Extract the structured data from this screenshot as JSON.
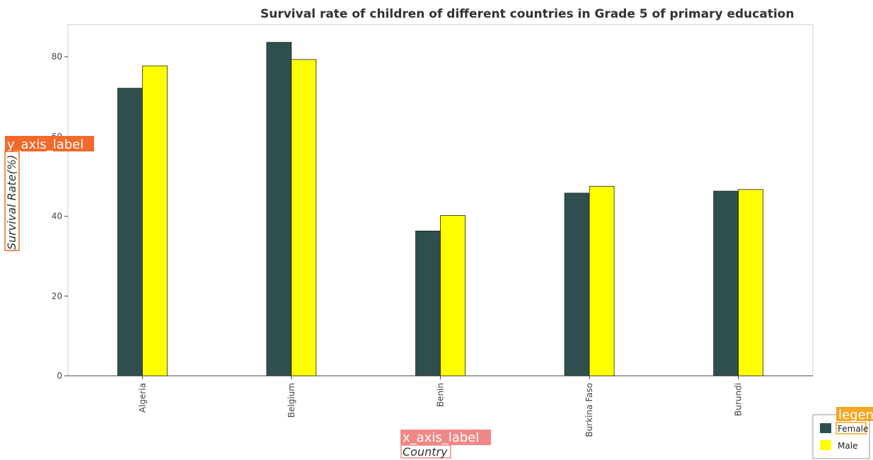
{
  "chart_data": {
    "type": "bar",
    "title": "Survival rate of children of different countries in Grade 5 of primary education",
    "xlabel": "Country",
    "ylabel": "Survival Rate(%)",
    "x_tag": "x_axis_label",
    "y_tag": "y_axis_label",
    "legend_tag": "legend",
    "categories": [
      "Algeria",
      "Belgium",
      "Benin",
      "Burkina Faso",
      "Burundi"
    ],
    "series": [
      {
        "name": "Female",
        "color": "#2f4f4f",
        "values": [
          72.1,
          83.6,
          36.3,
          45.8,
          46.3
        ]
      },
      {
        "name": "Male",
        "color": "#ffff00",
        "values": [
          77.7,
          79.3,
          40.2,
          47.5,
          46.7
        ]
      }
    ],
    "yticks": [
      0,
      20,
      40,
      60,
      80
    ],
    "ylim": [
      0,
      88
    ],
    "legend_position": "bottom-right",
    "grid": false
  }
}
